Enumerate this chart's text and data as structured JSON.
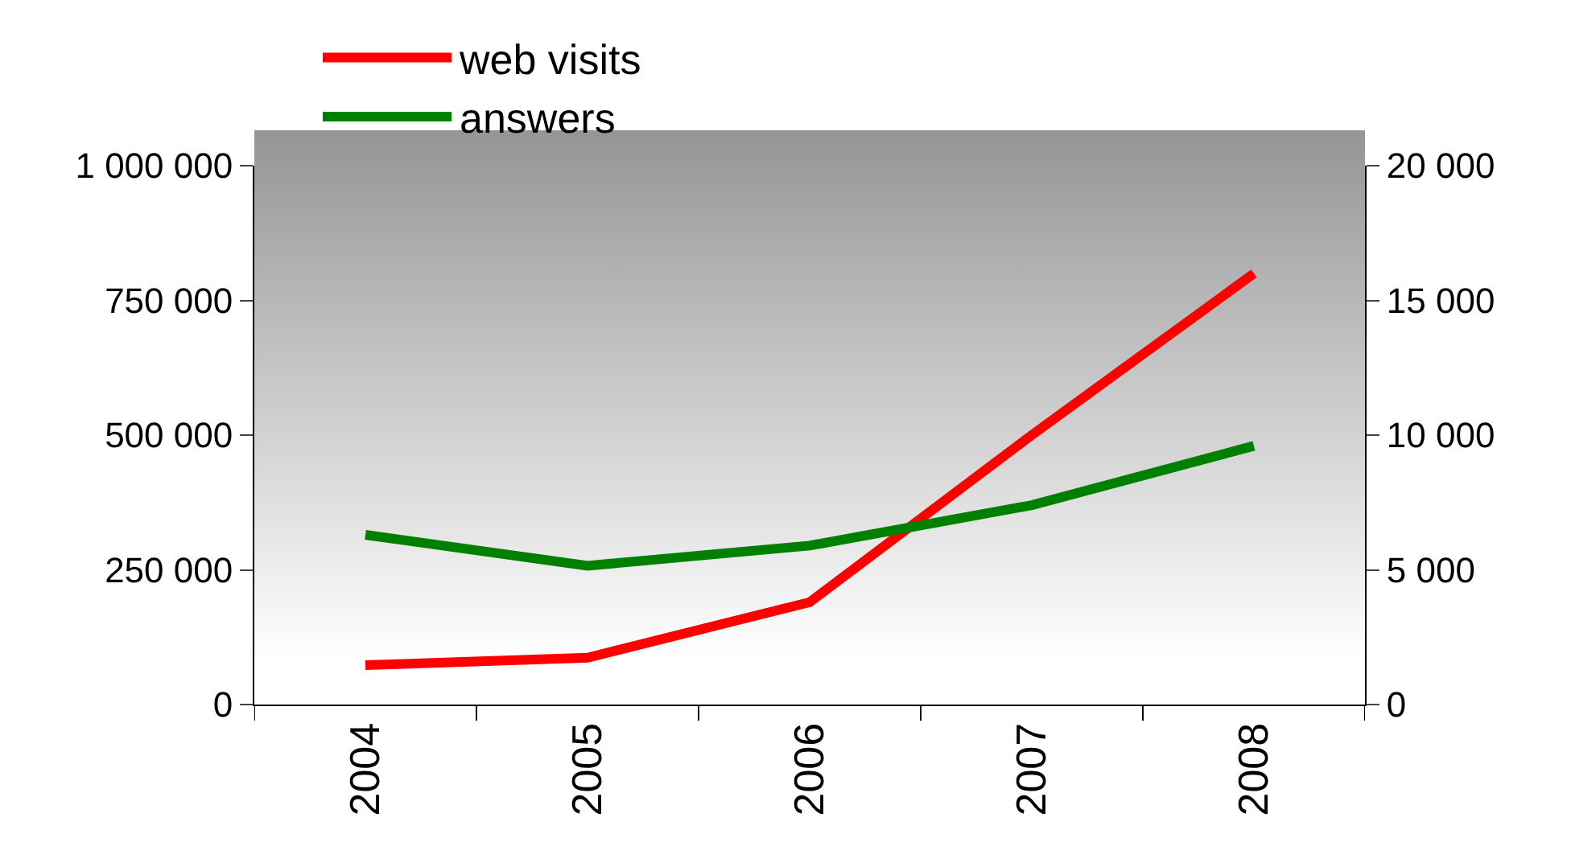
{
  "chart_data": {
    "type": "line",
    "categories": [
      "2004",
      "2005",
      "2006",
      "2007",
      "2008"
    ],
    "series": [
      {
        "name": "web visits",
        "color": "#ff0000",
        "values": [
          73000,
          87000,
          190000,
          500000,
          800000
        ]
      },
      {
        "name": "answers",
        "color": "#008000",
        "axis": "y2",
        "values": [
          6300,
          5150,
          5900,
          7400,
          9600
        ]
      }
    ],
    "ylim": [
      0,
      1000000
    ],
    "yticks": [
      0,
      {
        "value": 250000,
        "label": "250 000"
      },
      {
        "value": 500000,
        "label": "500 000"
      },
      {
        "value": 750000,
        "label": "750 000"
      },
      {
        "value": 1000000,
        "label": "1 000 000"
      }
    ],
    "y2lim": [
      0,
      20000
    ],
    "y2ticks": [
      0,
      {
        "value": 5000,
        "label": "5 000"
      },
      {
        "value": 10000,
        "label": "10 000"
      },
      {
        "value": 15000,
        "label": "15 000"
      },
      {
        "value": 20000,
        "label": "20 000"
      }
    ],
    "legend": "top",
    "grid": false,
    "marker": "none",
    "line_style": "solid"
  }
}
